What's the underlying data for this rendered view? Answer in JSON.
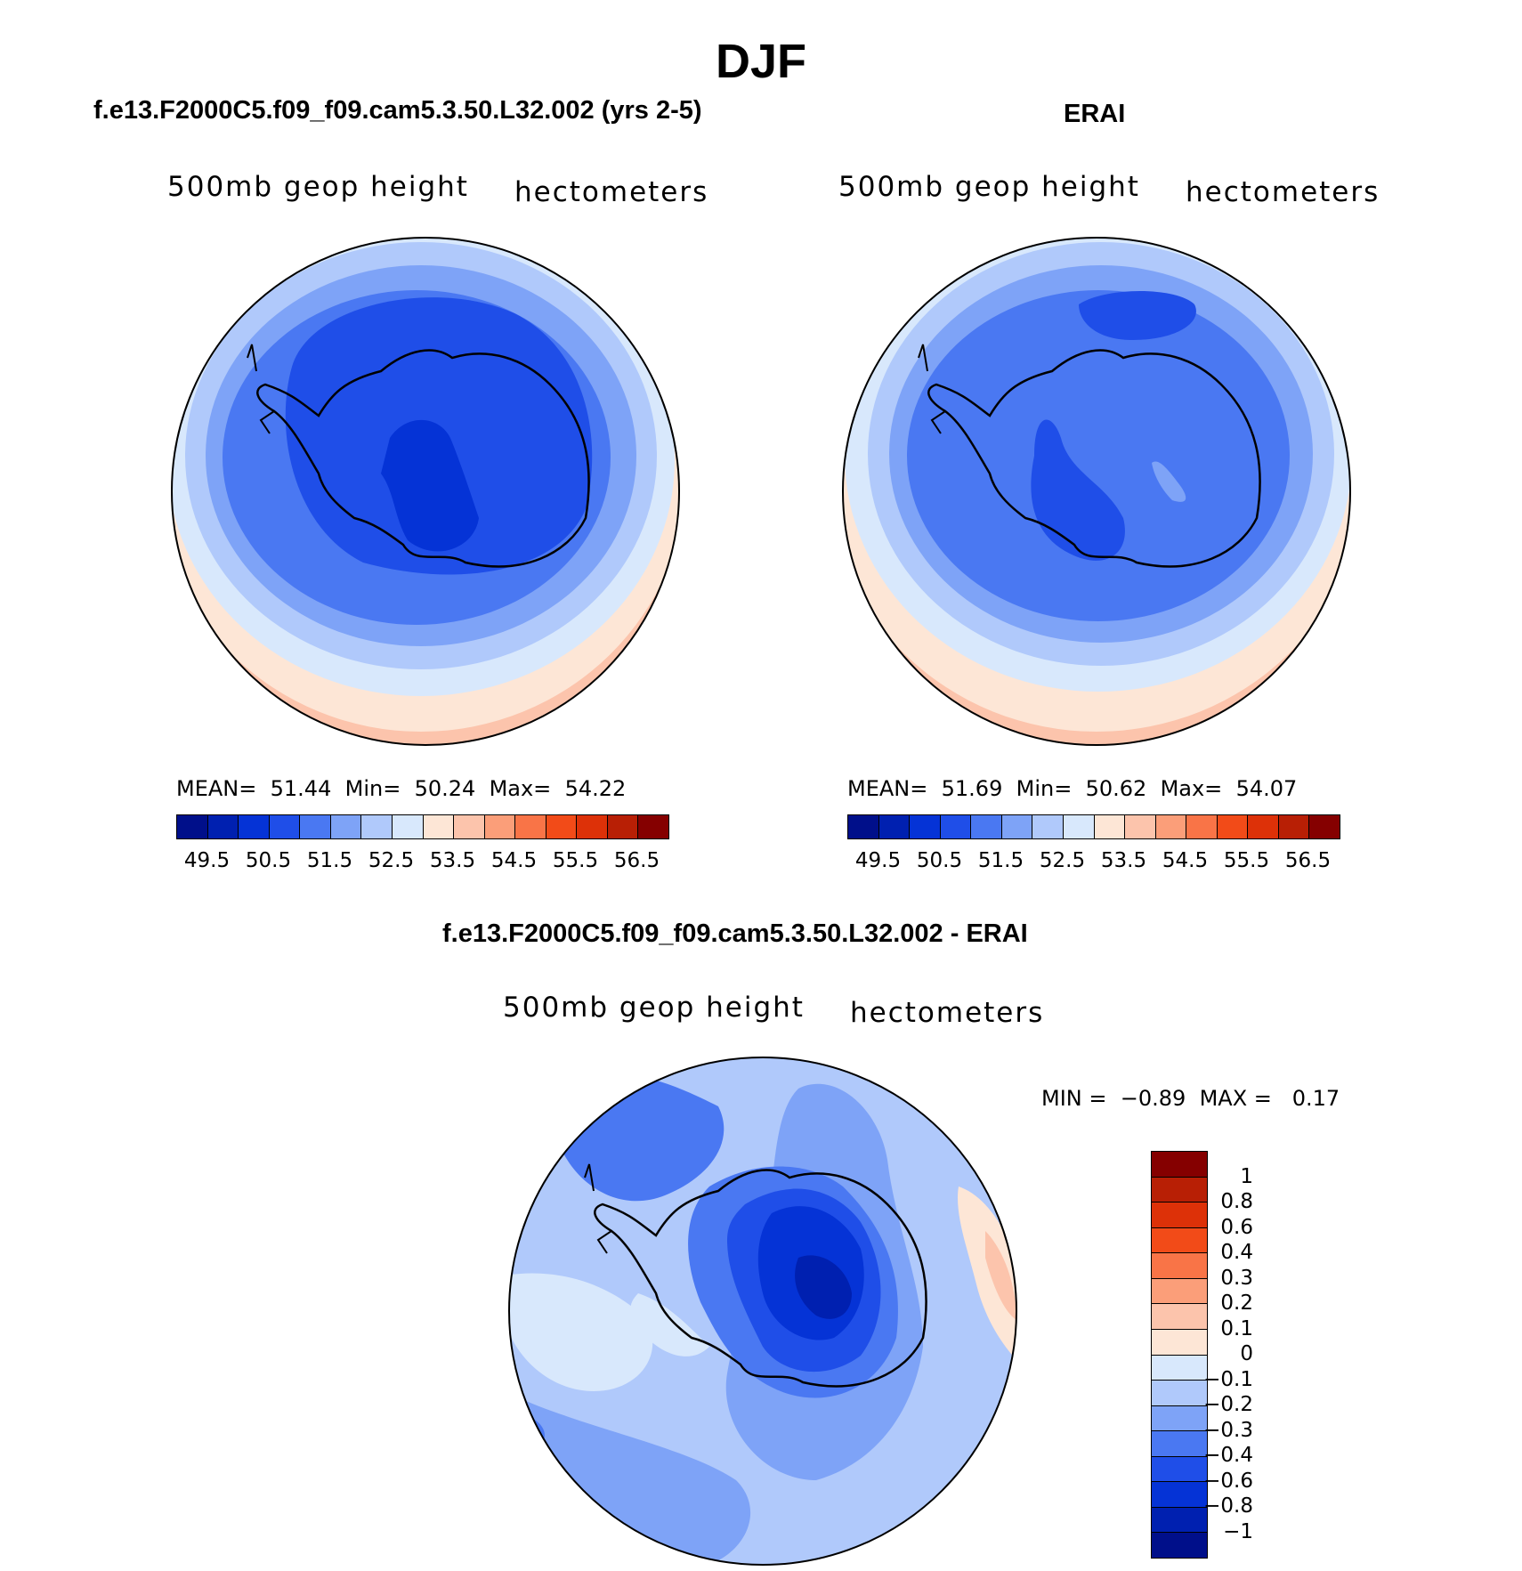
{
  "main_title": "DJF",
  "variable_label": "500mb geop height",
  "units_label": "hectometers",
  "panels": [
    {
      "title": "f.e13.F2000C5.f09_f09.cam5.3.50.L32.002 (yrs 2-5)",
      "stats": {
        "mean_label": "MEAN=",
        "mean": "51.44",
        "min_label": "Min=",
        "min": "50.24",
        "max_label": "Max=",
        "max": "54.22"
      }
    },
    {
      "title": "ERAI",
      "stats": {
        "mean_label": "MEAN=",
        "mean": "51.69",
        "min_label": "Min=",
        "min": "50.62",
        "max_label": "Max=",
        "max": "54.07"
      }
    }
  ],
  "abs_colorbar": {
    "colors": [
      "#000f8a",
      "#0020b0",
      "#0533d6",
      "#1f4ee8",
      "#4a78f2",
      "#7ea3f7",
      "#b0c9fb",
      "#d8e8fc",
      "#fde6d6",
      "#fcc4ac",
      "#fb9e79",
      "#f97447",
      "#f24b18",
      "#dd3108",
      "#b81f05",
      "#850000"
    ],
    "ticks": [
      "49.5",
      "50.5",
      "51.5",
      "52.5",
      "53.5",
      "54.5",
      "55.5",
      "56.5"
    ]
  },
  "diff_panel": {
    "title": "f.e13.F2000C5.f09_f09.cam5.3.50.L32.002 - ERAI",
    "min_label": "MIN =",
    "min": "−0.89",
    "max_label": "MAX =",
    "max": "0.17"
  },
  "diff_colorbar": {
    "colors": [
      "#850000",
      "#b81f05",
      "#dd3108",
      "#f24b18",
      "#f97447",
      "#fb9e79",
      "#fcc4ac",
      "#fde6d6",
      "#d8e8fc",
      "#b0c9fb",
      "#7ea3f7",
      "#4a78f2",
      "#1f4ee8",
      "#0533d6",
      "#0020b0",
      "#000f8a"
    ],
    "ticks": [
      "1",
      "0.8",
      "0.6",
      "0.4",
      "0.3",
      "0.2",
      "0.1",
      "0",
      "−0.1",
      "−0.2",
      "−0.3",
      "−0.4",
      "−0.6",
      "−0.8",
      "−1"
    ]
  }
}
